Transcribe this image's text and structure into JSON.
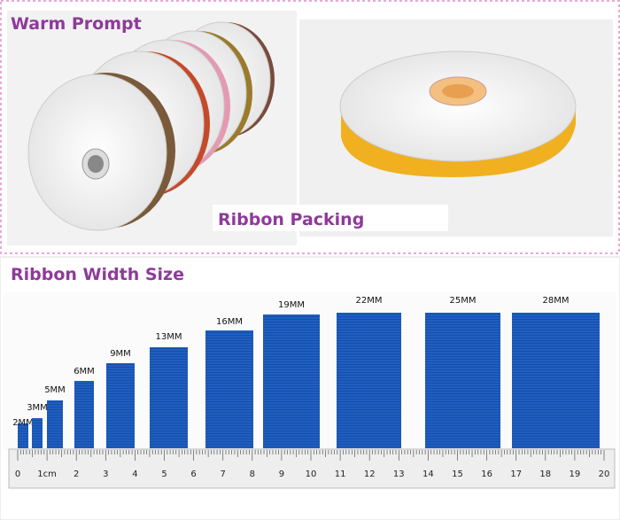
{
  "header": {
    "title": "Warm Prompt"
  },
  "packing": {
    "label": "Ribbon Packing"
  },
  "width_section": {
    "title": "Ribbon Width Size",
    "ribbons": [
      {
        "label": "2MM"
      },
      {
        "label": "3MM"
      },
      {
        "label": "5MM"
      },
      {
        "label": "6MM"
      },
      {
        "label": "9MM"
      },
      {
        "label": "13MM"
      },
      {
        "label": "16MM"
      },
      {
        "label": "19MM"
      },
      {
        "label": "22MM"
      },
      {
        "label": "25MM"
      },
      {
        "label": "28MM"
      }
    ],
    "ruler": [
      "0",
      "1cm",
      "2",
      "3",
      "4",
      "5",
      "6",
      "7",
      "8",
      "9",
      "10",
      "11",
      "12",
      "13",
      "14",
      "15",
      "16",
      "17",
      "18",
      "19",
      "20"
    ]
  }
}
